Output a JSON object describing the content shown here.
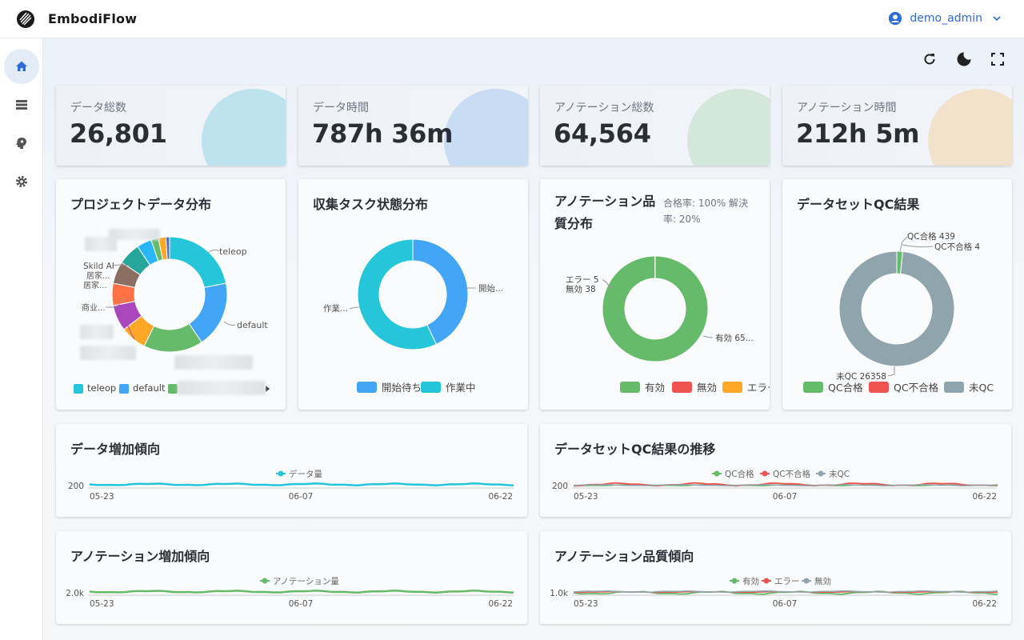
{
  "app": {
    "title": "EmbodiFlow"
  },
  "user": {
    "name": "demo_admin"
  },
  "sidebar": {
    "items": [
      "home",
      "data-list",
      "annotation",
      "settings"
    ]
  },
  "toolbar": {
    "icons": [
      "refresh-icon",
      "dark-mode-icon",
      "fullscreen-icon"
    ]
  },
  "stats": [
    {
      "label": "データ総数",
      "value": "26,801",
      "color": "#bde3ee"
    },
    {
      "label": "データ時間",
      "value": "787h 36m",
      "color": "#c8dcf4"
    },
    {
      "label": "アノテーション総数",
      "value": "64,564",
      "color": "#d3e7da"
    },
    {
      "label": "アノテーション時間",
      "value": "212h 5m",
      "color": "#f2e1cb"
    }
  ],
  "project_dist": {
    "title": "プロジェクトデータ分布",
    "labels": [
      "teleop",
      "default",
      "Skild AI",
      "居家...",
      "居家...",
      "商业..."
    ],
    "legend": [
      "teleop",
      "default"
    ]
  },
  "task_dist": {
    "title": "収集タスク状態分布",
    "labels": [
      "開始...",
      "作業..."
    ],
    "legend": [
      "開始待ち",
      "作業中"
    ]
  },
  "anno_quality": {
    "title_line1": "アノテーション品",
    "title_line2": "質分布",
    "sub_line1": "合格率: 100% 解決",
    "sub_line2": "率: 20%",
    "labels": [
      "エラー 5",
      "無効 38",
      "有効 65..."
    ],
    "legend": [
      "有効",
      "無効",
      "エラー"
    ]
  },
  "qc_result": {
    "title": "データセットQC結果",
    "labels": [
      "QC合格 439",
      "QC不合格 4",
      "未QC 26358"
    ],
    "legend": [
      "QC合格",
      "QC不合格",
      "未QC"
    ]
  },
  "trend_data": {
    "title": "データ増加傾向",
    "legend": [
      "データ量"
    ],
    "ytick": "200",
    "xticks": [
      "05-23",
      "06-07",
      "06-22"
    ]
  },
  "trend_qc": {
    "title": "データセットQC結果の推移",
    "legend": [
      "QC合格",
      "QC不合格",
      "未QC"
    ],
    "ytick": "200",
    "xticks": [
      "05-23",
      "06-07",
      "06-22"
    ]
  },
  "trend_anno": {
    "title": "アノテーション増加傾向",
    "legend": [
      "アノテーション量"
    ],
    "ytick": "2.0k",
    "xticks": [
      "05-23",
      "06-07",
      "06-22"
    ]
  },
  "trend_anno_quality": {
    "title": "アノテーション品質傾向",
    "legend": [
      "有効",
      "エラー",
      "無効"
    ],
    "ytick": "1.0k",
    "xticks": [
      "05-23",
      "06-07",
      "06-22"
    ]
  },
  "chart_data": [
    {
      "type": "pie",
      "title": "プロジェクトデータ分布",
      "categories": [
        "teleop",
        "default",
        "(blurred)",
        "(blurred)",
        "(blurred)",
        "商业...",
        "居家...",
        "居家...",
        "Skild AI",
        "(other)"
      ],
      "values": [
        21,
        18,
        16,
        9,
        8,
        6,
        6,
        6,
        5,
        5
      ]
    },
    {
      "type": "pie",
      "title": "収集タスク状態分布",
      "categories": [
        "開始待ち",
        "作業中"
      ],
      "values": [
        43,
        57
      ]
    },
    {
      "type": "pie",
      "title": "アノテーション品質分布",
      "categories": [
        "有効",
        "無効",
        "エラー"
      ],
      "values": [
        64521,
        38,
        5
      ]
    },
    {
      "type": "pie",
      "title": "データセットQC結果",
      "categories": [
        "QC合格",
        "QC不合格",
        "未QC"
      ],
      "values": [
        439,
        4,
        26358
      ]
    }
  ]
}
